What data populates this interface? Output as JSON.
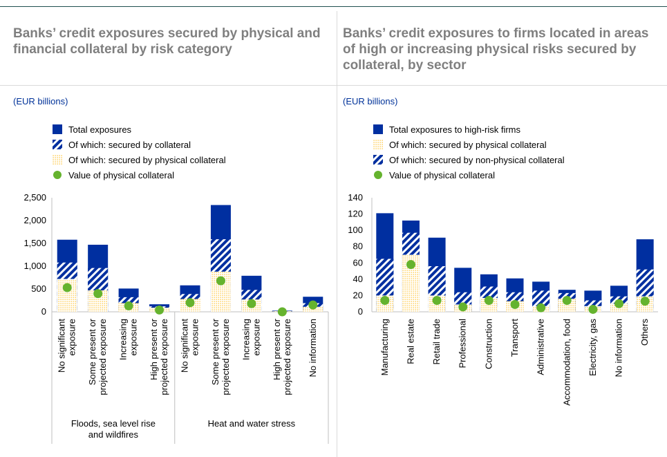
{
  "colors": {
    "navy": "#002fa0",
    "dots": "#ffb400",
    "green": "#65b32e",
    "unit": "#003299"
  },
  "chart_data": [
    {
      "type": "bar",
      "title": "Banks’ credit exposures secured by physical and financial collateral by risk category",
      "unit": "(EUR billions)",
      "ylim": [
        0,
        2500
      ],
      "yticks": [
        "0",
        "500",
        "1,000",
        "1,500",
        "2,000",
        "2,500"
      ],
      "ytick_values": [
        0,
        500,
        1000,
        1500,
        2000,
        2500
      ],
      "categories": [
        [
          "No significant",
          "exposure"
        ],
        [
          "Some present or",
          "projected exposure"
        ],
        [
          "Increasing",
          "exposure"
        ],
        [
          "High present or",
          "projected exposure"
        ],
        [
          "No significant",
          "exposure"
        ],
        [
          "Some present or",
          "projected exposure"
        ],
        [
          "Increasing",
          "exposure"
        ],
        [
          "High present or",
          "projected exposure"
        ],
        [
          "No information"
        ]
      ],
      "groups": [
        {
          "label": [
            "Floods, sea level rise",
            "and wildfires"
          ],
          "count": 4
        },
        {
          "label": [
            "Heat and water stress"
          ],
          "count": 5
        }
      ],
      "series": [
        {
          "name": "Total exposures",
          "values": [
            1580,
            1470,
            510,
            165,
            580,
            2340,
            790,
            25,
            330
          ]
        },
        {
          "name": "Of which: secured by collateral",
          "values": [
            1080,
            960,
            320,
            120,
            390,
            1590,
            480,
            15,
            190
          ]
        },
        {
          "name": "Of which: secured by physical collateral",
          "values": [
            720,
            470,
            190,
            90,
            280,
            880,
            270,
            10,
            110
          ]
        },
        {
          "name": "Value of physical collateral",
          "values": [
            530,
            400,
            130,
            40,
            200,
            680,
            180,
            0,
            150
          ]
        }
      ]
    },
    {
      "type": "bar",
      "title": "Banks’ credit exposures to firms located in areas of high or increasing physical risks secured by collateral, by sector",
      "unit": "(EUR billions)",
      "ylim": [
        0,
        140
      ],
      "yticks": [
        "0",
        "20",
        "40",
        "60",
        "80",
        "100",
        "120",
        "140"
      ],
      "ytick_values": [
        0,
        20,
        40,
        60,
        80,
        100,
        120,
        140
      ],
      "categories": [
        [
          "Manufacturing"
        ],
        [
          "Real estate"
        ],
        [
          "Retail trade"
        ],
        [
          "Professional"
        ],
        [
          "Construction"
        ],
        [
          "Transport"
        ],
        [
          "Administrative"
        ],
        [
          "Accommodation, food"
        ],
        [
          "Electricity, gas"
        ],
        [
          "No information"
        ],
        [
          "Others"
        ]
      ],
      "series": [
        {
          "name": "Total exposures to high-risk firms",
          "values": [
            121,
            112,
            91,
            54,
            46,
            41,
            37,
            27,
            26,
            32,
            89
          ]
        },
        {
          "name": "Of which: secured by physical collateral",
          "values": [
            20,
            70,
            20,
            9,
            17,
            13,
            7,
            16,
            7,
            10,
            19
          ]
        },
        {
          "name": "Of which: secured by non-physical collateral",
          "values": [
            45,
            27,
            36,
            15,
            14,
            11,
            19,
            7,
            7,
            9,
            33
          ]
        },
        {
          "name": "Value of physical collateral",
          "values": [
            14,
            58,
            14,
            6,
            14,
            9,
            5,
            14,
            3,
            10,
            13
          ]
        }
      ]
    }
  ]
}
